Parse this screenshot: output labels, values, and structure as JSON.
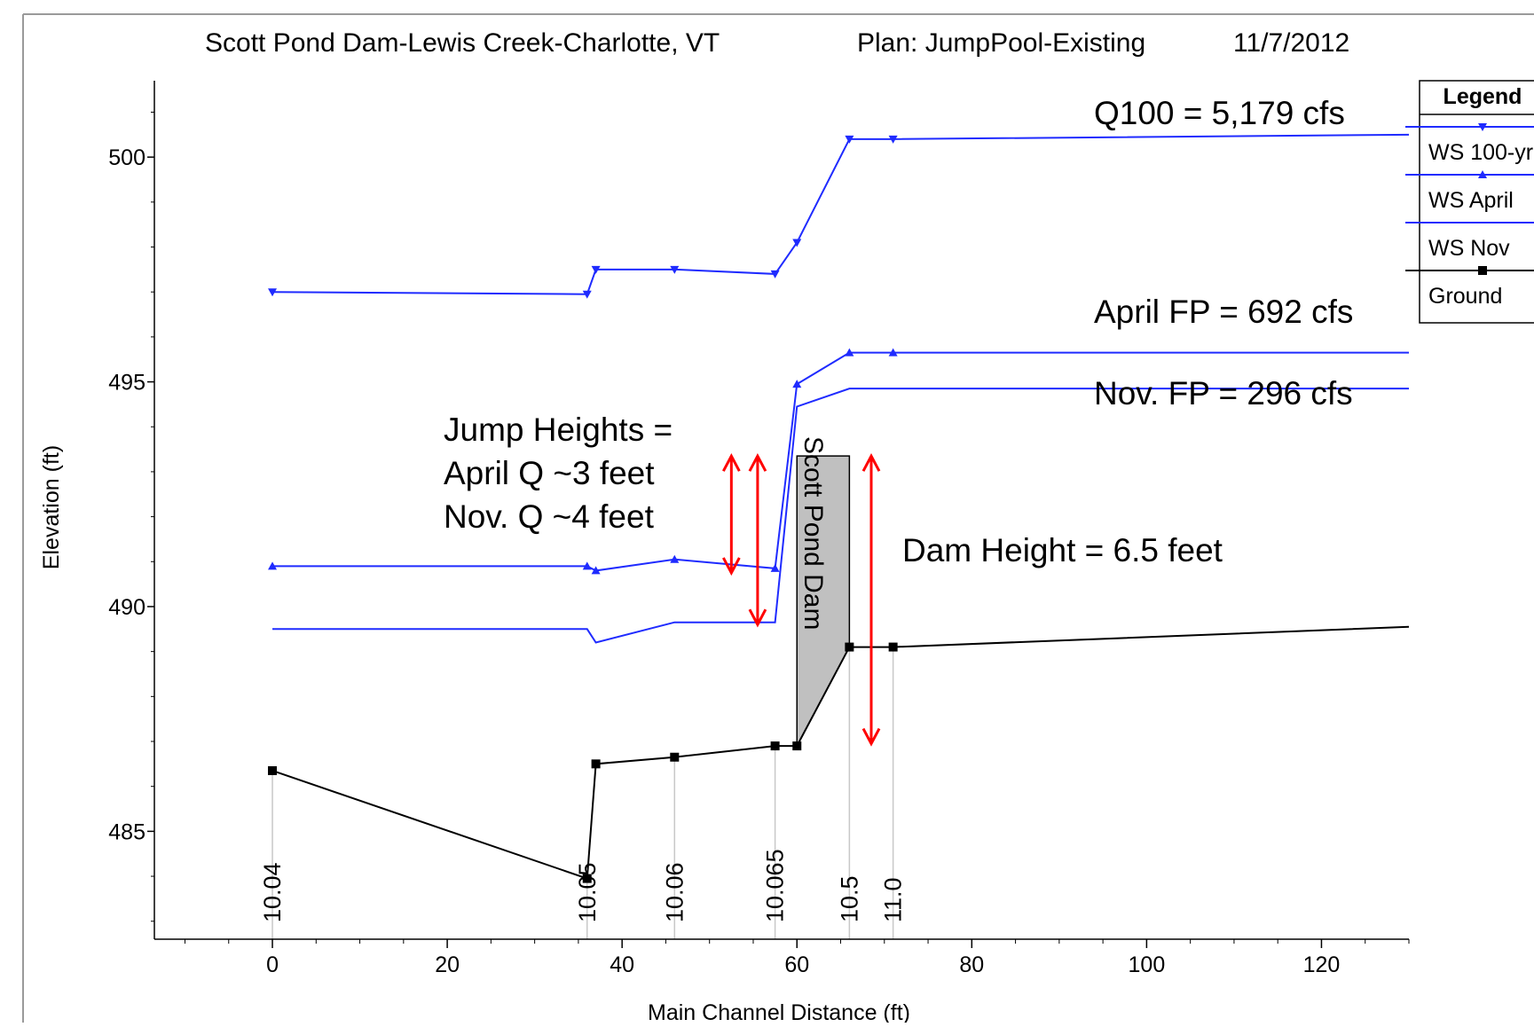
{
  "header": {
    "title": "Scott Pond Dam-Lewis Creek-Charlotte, VT",
    "plan": "Plan: JumpPool-Existing",
    "date": "11/7/2012"
  },
  "legend": {
    "title": "Legend",
    "items": [
      "WS 100-yr",
      "WS April",
      "WS Nov",
      "Ground"
    ]
  },
  "annotations": {
    "q100": "Q100 = 5,179 cfs",
    "april": "April FP = 692 cfs",
    "nov": "Nov. FP = 296 cfs",
    "jump1": "Jump Heights =",
    "jump2": "April Q ~3 feet",
    "jump3": "Nov. Q ~4 feet",
    "dam_label": "Scott Pond Dam",
    "dam_height": "Dam Height = 6.5 feet"
  },
  "colors": {
    "ws": "#1f2bff",
    "ground": "#000000",
    "arrow": "#ff0000",
    "dam": "#c0c0c0",
    "xs_line": "#c8c8c8"
  },
  "chart_data": {
    "type": "line",
    "title": "Scott Pond Dam-Lewis Creek-Charlotte, VT",
    "xlabel": "Main Channel Distance (ft)",
    "ylabel": "Elevation (ft)",
    "xlim": [
      -13.5,
      130
    ],
    "ylim": [
      482.6,
      501.7
    ],
    "xticks": [
      0,
      20,
      40,
      60,
      80,
      100,
      120
    ],
    "yticks": [
      485,
      490,
      495,
      500
    ],
    "series": [
      {
        "name": "WS 100-yr",
        "marker": "triangle-down",
        "points": [
          [
            0,
            497.0
          ],
          [
            36,
            496.95
          ],
          [
            37,
            497.5
          ],
          [
            46,
            497.5
          ],
          [
            57.5,
            497.4
          ],
          [
            60,
            498.1
          ],
          [
            66,
            500.4
          ],
          [
            71,
            500.4
          ],
          [
            130,
            500.5
          ]
        ],
        "marked": [
          0,
          1,
          2,
          3,
          4,
          5,
          6,
          7
        ]
      },
      {
        "name": "WS April",
        "marker": "triangle-up",
        "points": [
          [
            0,
            490.9
          ],
          [
            36,
            490.9
          ],
          [
            37,
            490.8
          ],
          [
            46,
            491.05
          ],
          [
            57.5,
            490.85
          ],
          [
            60,
            494.95
          ],
          [
            66,
            495.65
          ],
          [
            71,
            495.65
          ],
          [
            130,
            495.65
          ]
        ],
        "marked": [
          0,
          1,
          2,
          3,
          4,
          5,
          6,
          7
        ]
      },
      {
        "name": "WS Nov",
        "marker": "none",
        "points": [
          [
            0,
            489.5
          ],
          [
            36,
            489.5
          ],
          [
            37,
            489.2
          ],
          [
            46,
            489.65
          ],
          [
            57.5,
            489.65
          ],
          [
            60,
            494.45
          ],
          [
            66,
            494.85
          ],
          [
            71,
            494.85
          ],
          [
            130,
            494.85
          ]
        ],
        "marked": []
      },
      {
        "name": "Ground",
        "marker": "square",
        "points": [
          [
            0,
            486.35
          ],
          [
            36,
            483.95
          ],
          [
            37,
            486.5
          ],
          [
            46,
            486.65
          ],
          [
            57.5,
            486.9
          ],
          [
            60,
            486.9
          ],
          [
            66,
            489.1
          ],
          [
            71,
            489.1
          ],
          [
            130,
            489.55
          ]
        ],
        "marked": [
          0,
          1,
          2,
          3,
          4,
          5,
          6,
          7
        ]
      }
    ],
    "cross_sections": [
      {
        "label": "10.04",
        "x": 0,
        "ground": 486.35
      },
      {
        "label": "10.05",
        "x": 36,
        "ground": 483.95
      },
      {
        "label": "10.06",
        "x": 46,
        "ground": 486.65
      },
      {
        "label": "10.065",
        "x": 57.5,
        "ground": 486.9
      },
      {
        "label": "10.5",
        "x": 66,
        "ground": 489.1
      },
      {
        "label": "11.0",
        "x": 71,
        "ground": 489.1
      }
    ],
    "dam": {
      "x0": 60,
      "x1": 66,
      "crest": 493.35
    },
    "arrows": [
      {
        "x": 52.5,
        "y0": 490.75,
        "y1": 493.35
      },
      {
        "x": 55.5,
        "y0": 489.6,
        "y1": 493.35
      },
      {
        "x": 68.5,
        "y0": 486.95,
        "y1": 493.35
      }
    ]
  }
}
